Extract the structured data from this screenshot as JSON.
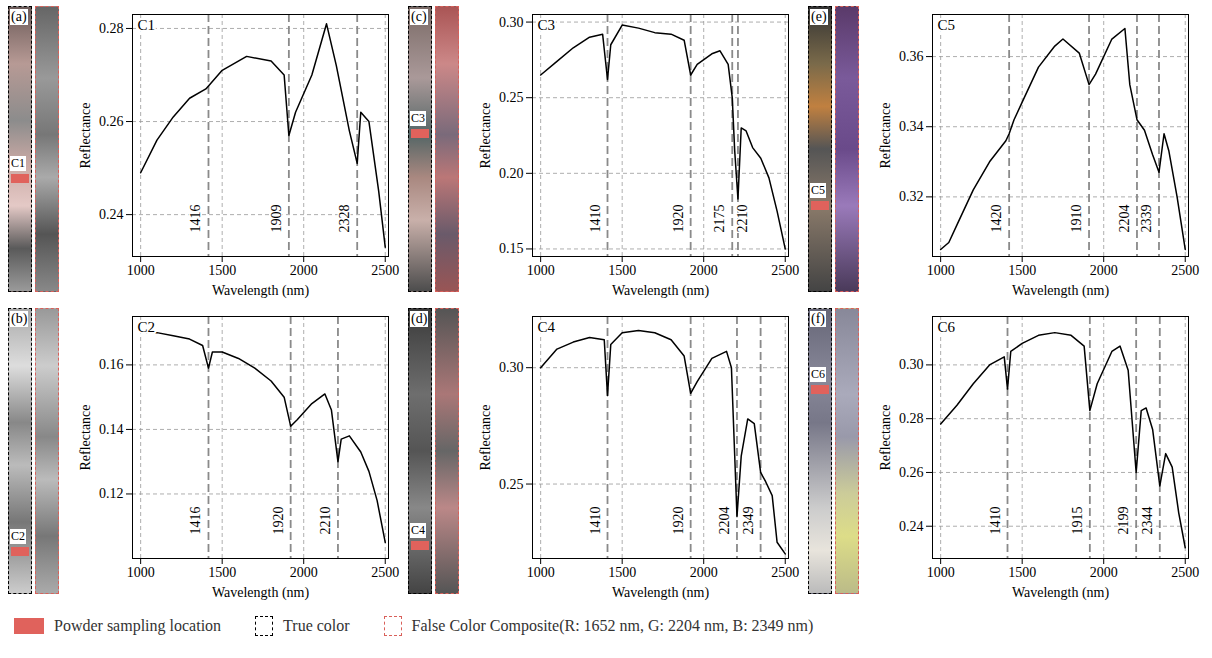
{
  "chart_data": [
    {
      "type": "line",
      "title": "C1",
      "panel_label": "(a)",
      "sample_label": "C1",
      "x_label": "Wavelength (nm)",
      "y_label": "Reflectance",
      "xlim": [
        950,
        2520
      ],
      "xticks": [
        1000,
        1500,
        2000,
        2500
      ],
      "ylim": [
        0.231,
        0.283
      ],
      "yticks": [
        0.24,
        0.26,
        0.28
      ],
      "grid": true,
      "color": "#000000",
      "annotations": [
        1416,
        1909,
        2328
      ],
      "x": [
        1000,
        1100,
        1200,
        1300,
        1400,
        1500,
        1650,
        1800,
        1880,
        1909,
        1950,
        2050,
        2140,
        2200,
        2280,
        2328,
        2350,
        2400,
        2460,
        2500
      ],
      "values": [
        0.249,
        0.256,
        0.261,
        0.265,
        0.267,
        0.271,
        0.274,
        0.273,
        0.27,
        0.257,
        0.262,
        0.27,
        0.281,
        0.272,
        0.258,
        0.251,
        0.262,
        0.26,
        0.245,
        0.233
      ]
    },
    {
      "type": "line",
      "title": "C3",
      "panel_label": "(c)",
      "sample_label": "C3",
      "x_label": "Wavelength (nm)",
      "y_label": "Reflectance",
      "xlim": [
        950,
        2520
      ],
      "xticks": [
        1000,
        1500,
        2000,
        2500
      ],
      "ylim": [
        0.145,
        0.305
      ],
      "yticks": [
        0.15,
        {
          "value": 0.2,
          "label": "0.20"
        },
        0.25,
        {
          "value": 0.3,
          "label": "0.30"
        }
      ],
      "grid": true,
      "color": "#000000",
      "annotations": [
        1410,
        1920,
        2175,
        2210
      ],
      "x": [
        1000,
        1100,
        1200,
        1300,
        1380,
        1410,
        1430,
        1500,
        1600,
        1700,
        1800,
        1880,
        1920,
        1960,
        2050,
        2100,
        2150,
        2175,
        2190,
        2210,
        2230,
        2260,
        2300,
        2350,
        2400,
        2450,
        2500
      ],
      "values": [
        0.265,
        0.274,
        0.283,
        0.29,
        0.292,
        0.262,
        0.285,
        0.298,
        0.296,
        0.293,
        0.292,
        0.288,
        0.265,
        0.272,
        0.279,
        0.281,
        0.272,
        0.25,
        0.215,
        0.183,
        0.23,
        0.228,
        0.217,
        0.21,
        0.197,
        0.175,
        0.15
      ]
    },
    {
      "type": "line",
      "title": "C5",
      "panel_label": "(e)",
      "sample_label": "C5",
      "x_label": "Wavelength (nm)",
      "y_label": "Reflectance",
      "xlim": [
        950,
        2520
      ],
      "xticks": [
        1000,
        1500,
        2000,
        2500
      ],
      "ylim": [
        0.303,
        0.372
      ],
      "yticks": [
        0.32,
        0.34,
        0.36
      ],
      "grid": true,
      "color": "#000000",
      "annotations": [
        1420,
        1910,
        2204,
        2339
      ],
      "x": [
        1000,
        1050,
        1100,
        1200,
        1300,
        1400,
        1420,
        1450,
        1500,
        1600,
        1700,
        1750,
        1850,
        1910,
        1950,
        2050,
        2130,
        2160,
        2204,
        2250,
        2300,
        2339,
        2370,
        2400,
        2450,
        2500
      ],
      "values": [
        0.305,
        0.307,
        0.312,
        0.322,
        0.33,
        0.336,
        0.338,
        0.342,
        0.347,
        0.357,
        0.363,
        0.365,
        0.361,
        0.352,
        0.355,
        0.365,
        0.368,
        0.352,
        0.342,
        0.339,
        0.332,
        0.327,
        0.338,
        0.333,
        0.32,
        0.305
      ]
    },
    {
      "type": "line",
      "title": "C2",
      "panel_label": "(b)",
      "sample_label": "C2",
      "x_label": "Wavelength (nm)",
      "y_label": "Reflectance",
      "xlim": [
        950,
        2520
      ],
      "xticks": [
        1000,
        1500,
        2000,
        2500
      ],
      "ylim": [
        0.1,
        0.175
      ],
      "yticks": [
        0.12,
        0.14,
        0.16
      ],
      "grid": true,
      "color": "#000000",
      "annotations": [
        1416,
        1920,
        2210
      ],
      "x": [
        1000,
        1100,
        1200,
        1300,
        1380,
        1416,
        1440,
        1500,
        1600,
        1700,
        1800,
        1880,
        1920,
        1960,
        2050,
        2130,
        2170,
        2210,
        2230,
        2280,
        2350,
        2400,
        2450,
        2500
      ],
      "values": [
        0.17,
        0.17,
        0.169,
        0.168,
        0.166,
        0.159,
        0.164,
        0.164,
        0.162,
        0.159,
        0.155,
        0.15,
        0.141,
        0.143,
        0.148,
        0.151,
        0.146,
        0.13,
        0.137,
        0.138,
        0.133,
        0.127,
        0.118,
        0.105
      ]
    },
    {
      "type": "line",
      "title": "C4",
      "panel_label": "(d)",
      "sample_label": "C4",
      "x_label": "Wavelength (nm)",
      "y_label": "Reflectance",
      "xlim": [
        950,
        2520
      ],
      "xticks": [
        1000,
        1500,
        2000,
        2500
      ],
      "ylim": [
        0.218,
        0.322
      ],
      "yticks": [
        0.25,
        {
          "value": 0.3,
          "label": "0.30"
        }
      ],
      "grid": true,
      "color": "#000000",
      "annotations": [
        1410,
        1920,
        2204,
        2349
      ],
      "x": [
        1000,
        1100,
        1200,
        1300,
        1390,
        1410,
        1430,
        1500,
        1600,
        1700,
        1800,
        1880,
        1920,
        1960,
        2050,
        2140,
        2170,
        2204,
        2230,
        2270,
        2310,
        2349,
        2380,
        2420,
        2450,
        2500
      ],
      "values": [
        0.3,
        0.308,
        0.311,
        0.313,
        0.312,
        0.288,
        0.31,
        0.315,
        0.316,
        0.315,
        0.312,
        0.305,
        0.289,
        0.294,
        0.304,
        0.307,
        0.3,
        0.236,
        0.262,
        0.278,
        0.276,
        0.255,
        0.251,
        0.245,
        0.225,
        0.22
      ]
    },
    {
      "type": "line",
      "title": "C6",
      "panel_label": "(f)",
      "sample_label": "C6",
      "x_label": "Wavelength (nm)",
      "y_label": "Reflectance",
      "xlim": [
        950,
        2520
      ],
      "xticks": [
        1000,
        1500,
        2000,
        2500
      ],
      "ylim": [
        0.228,
        0.318
      ],
      "yticks": [
        0.24,
        0.26,
        0.28,
        {
          "value": 0.3,
          "label": "0.30"
        }
      ],
      "grid": true,
      "color": "#000000",
      "annotations": [
        1410,
        1915,
        2199,
        2344
      ],
      "x": [
        1000,
        1100,
        1200,
        1300,
        1390,
        1410,
        1430,
        1500,
        1600,
        1700,
        1800,
        1880,
        1915,
        1960,
        2050,
        2100,
        2150,
        2199,
        2230,
        2260,
        2300,
        2344,
        2380,
        2420,
        2460,
        2500
      ],
      "values": [
        0.278,
        0.285,
        0.293,
        0.3,
        0.303,
        0.291,
        0.305,
        0.308,
        0.311,
        0.312,
        0.311,
        0.307,
        0.283,
        0.293,
        0.305,
        0.307,
        0.298,
        0.26,
        0.283,
        0.284,
        0.276,
        0.255,
        0.267,
        0.262,
        0.245,
        0.232
      ]
    }
  ],
  "legend_items": [
    {
      "label": "Powder sampling location",
      "marker": "patch",
      "color": "#e0625c"
    },
    {
      "label": "True color",
      "line_style": "dashed",
      "color": "#000000"
    },
    {
      "label": "False Color Composite(R: 1652 nm, G: 2204 nm, B: 2349 nm)",
      "line_style": "dashed",
      "color": "#d9605a"
    }
  ]
}
